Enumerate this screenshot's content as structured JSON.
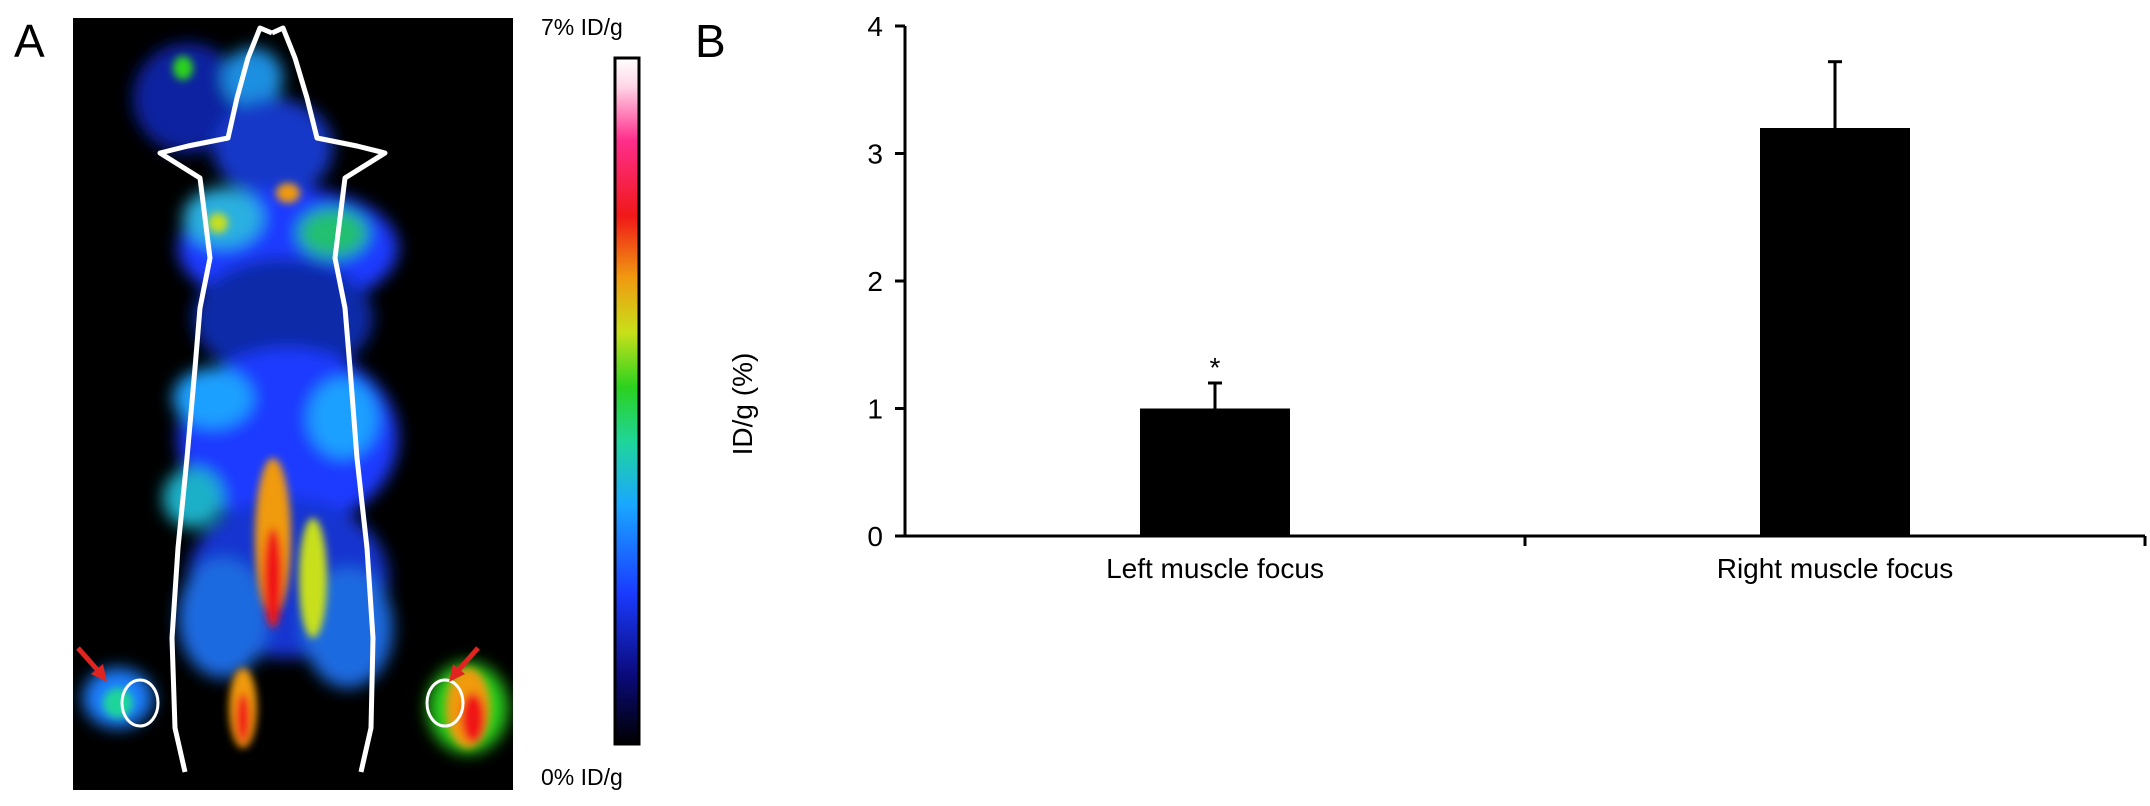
{
  "panels": {
    "a": "A",
    "b": "B"
  },
  "pet_image": {
    "colorbar_max_label": "7% ID/g",
    "colorbar_min_label": "0% ID/g",
    "colormap": [
      "#000000",
      "#0a0a7a",
      "#1a3bff",
      "#1aa8ff",
      "#1fd59a",
      "#2bd21f",
      "#c8e01a",
      "#f09a10",
      "#f01818",
      "#ff2e8c",
      "#ffd8e8",
      "#ffffff"
    ],
    "arrow_color": "#e0241f",
    "outline_color": "#ffffff"
  },
  "chart_data": {
    "type": "bar",
    "categories": [
      "Left muscle focus",
      "Right muscle focus"
    ],
    "values": [
      1.0,
      3.2
    ],
    "errors": [
      0.2,
      0.52
    ],
    "annotations": [
      "*",
      ""
    ],
    "xlabel": "",
    "ylabel": "ID/g (%)",
    "ylim": [
      0,
      4
    ],
    "yticks": [
      0,
      1,
      2,
      3,
      4
    ],
    "bar_color": "#000000",
    "grid": false
  }
}
